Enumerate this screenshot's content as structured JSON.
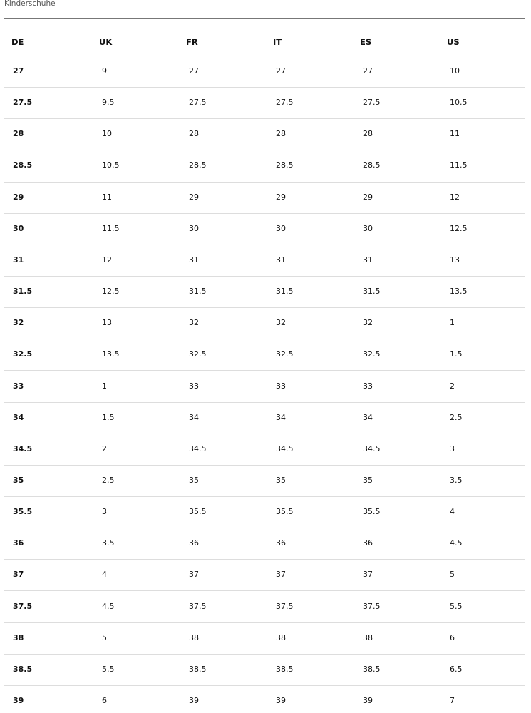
{
  "title": "Kinderschuhe",
  "table": {
    "header": [
      "DE",
      "UK",
      "FR",
      "IT",
      "ES",
      "US"
    ],
    "rows": [
      [
        "27",
        "9",
        "27",
        "27",
        "27",
        "10"
      ],
      [
        "27.5",
        "9.5",
        "27.5",
        "27.5",
        "27.5",
        "10.5"
      ],
      [
        "28",
        "10",
        "28",
        "28",
        "28",
        "11"
      ],
      [
        "28.5",
        "10.5",
        "28.5",
        "28.5",
        "28.5",
        "11.5"
      ],
      [
        "29",
        "11",
        "29",
        "29",
        "29",
        "12"
      ],
      [
        "30",
        "11.5",
        "30",
        "30",
        "30",
        "12.5"
      ],
      [
        "31",
        "12",
        "31",
        "31",
        "31",
        "13"
      ],
      [
        "31.5",
        "12.5",
        "31.5",
        "31.5",
        "31.5",
        "13.5"
      ],
      [
        "32",
        "13",
        "32",
        "32",
        "32",
        "1"
      ],
      [
        "32.5",
        "13.5",
        "32.5",
        "32.5",
        "32.5",
        "1.5"
      ],
      [
        "33",
        "1",
        "33",
        "33",
        "33",
        "2"
      ],
      [
        "34",
        "1.5",
        "34",
        "34",
        "34",
        "2.5"
      ],
      [
        "34.5",
        "2",
        "34.5",
        "34.5",
        "34.5",
        "3"
      ],
      [
        "35",
        "2.5",
        "35",
        "35",
        "35",
        "3.5"
      ],
      [
        "35.5",
        "3",
        "35.5",
        "35.5",
        "35.5",
        "4"
      ],
      [
        "36",
        "3.5",
        "36",
        "36",
        "36",
        "4.5"
      ],
      [
        "37",
        "4",
        "37",
        "37",
        "37",
        "5"
      ],
      [
        "37.5",
        "4.5",
        "37.5",
        "37.5",
        "37.5",
        "5.5"
      ],
      [
        "38",
        "5",
        "38",
        "38",
        "38",
        "6"
      ],
      [
        "38.5",
        "5.5",
        "38.5",
        "38.5",
        "38.5",
        "6.5"
      ],
      [
        "39",
        "6",
        "39",
        "39",
        "39",
        "7"
      ]
    ]
  }
}
